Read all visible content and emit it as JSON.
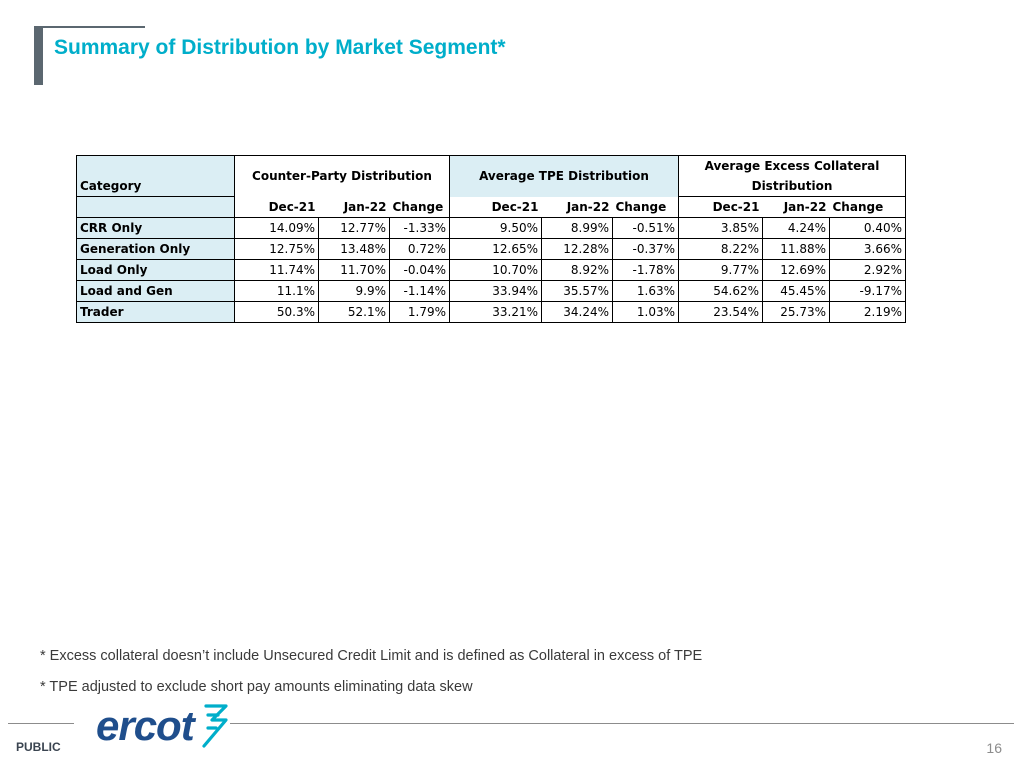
{
  "title": "Summary of Distribution by Market Segment*",
  "table": {
    "category_header": "Category",
    "groups": [
      {
        "label": "Counter-Party Distribution"
      },
      {
        "label": "Average TPE Distribution"
      },
      {
        "label_line1": "Average Excess Collateral",
        "label_line2": "Distribution"
      }
    ],
    "sub_headers": [
      "Dec-21",
      "Jan-22",
      "Change"
    ],
    "rows": [
      {
        "category": "CRR Only",
        "cp": [
          "14.09%",
          "12.77%",
          "-1.33%"
        ],
        "tpe": [
          "9.50%",
          "8.99%",
          "-0.51%"
        ],
        "ec": [
          "3.85%",
          "4.24%",
          "0.40%"
        ]
      },
      {
        "category": "Generation Only",
        "cp": [
          "12.75%",
          "13.48%",
          "0.72%"
        ],
        "tpe": [
          "12.65%",
          "12.28%",
          "-0.37%"
        ],
        "ec": [
          "8.22%",
          "11.88%",
          "3.66%"
        ]
      },
      {
        "category": "Load Only",
        "cp": [
          "11.74%",
          "11.70%",
          "-0.04%"
        ],
        "tpe": [
          "10.70%",
          "8.92%",
          "-1.78%"
        ],
        "ec": [
          "9.77%",
          "12.69%",
          "2.92%"
        ]
      },
      {
        "category": "Load and Gen",
        "cp": [
          "11.1%",
          "9.9%",
          "-1.14%"
        ],
        "tpe": [
          "33.94%",
          "35.57%",
          "1.63%"
        ],
        "ec": [
          "54.62%",
          "45.45%",
          "-9.17%"
        ]
      },
      {
        "category": "Trader",
        "cp": [
          "50.3%",
          "52.1%",
          "1.79%"
        ],
        "tpe": [
          "33.21%",
          "34.24%",
          "1.03%"
        ],
        "ec": [
          "23.54%",
          "25.73%",
          "2.19%"
        ]
      }
    ]
  },
  "notes": [
    "* Excess collateral doesn’t include Unsecured Credit Limit and is defined as Collateral in excess of TPE",
    "* TPE adjusted to exclude short pay amounts eliminating data skew"
  ],
  "footer": {
    "classification": "PUBLIC",
    "logo_text": "ercot",
    "page_number": "16"
  },
  "colors": {
    "title": "#00aeca",
    "category_fill": "#dbeef4",
    "accent_bar": "#5b6770",
    "logo_blue": "#1f4e8c",
    "logo_teal": "#00aeca"
  }
}
